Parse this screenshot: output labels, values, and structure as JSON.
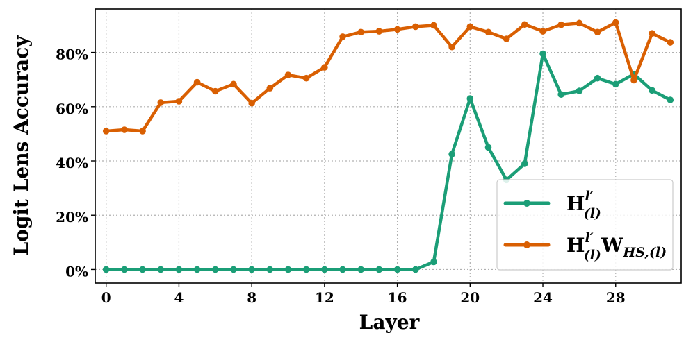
{
  "chart_data": {
    "type": "line",
    "xlabel": "Layer",
    "ylabel": "Logit Lens Accuracy",
    "xlim": [
      -0.6,
      31.6
    ],
    "ylim": [
      -0.05,
      0.96
    ],
    "x_ticks": [
      0,
      4,
      8,
      12,
      16,
      20,
      24,
      28
    ],
    "x_tick_labels": [
      "0",
      "4",
      "8",
      "12",
      "16",
      "20",
      "24",
      "28"
    ],
    "y_ticks": [
      0,
      0.2,
      0.4,
      0.6,
      0.8
    ],
    "y_tick_labels": [
      "0%",
      "20%",
      "40%",
      "60%",
      "80%"
    ],
    "grid": true,
    "legend_position": "lower-right",
    "x": [
      0,
      1,
      2,
      3,
      4,
      5,
      6,
      7,
      8,
      9,
      10,
      11,
      12,
      13,
      14,
      15,
      16,
      17,
      18,
      19,
      20,
      21,
      22,
      23,
      24,
      25,
      26,
      27,
      28,
      29,
      30,
      31
    ],
    "series": [
      {
        "name": "H(l)^l′",
        "legend_main": "H",
        "legend_sub": "(l)",
        "legend_sup": "l′",
        "color": "#1b9e77",
        "values": [
          0,
          0,
          0,
          0,
          0,
          0,
          0,
          0,
          0,
          0,
          0,
          0,
          0,
          0,
          0,
          0,
          0,
          0,
          0.028,
          0.425,
          0.63,
          0.45,
          0.33,
          0.39,
          0.795,
          0.645,
          0.658,
          0.705,
          0.683,
          0.72,
          0.66,
          0.625
        ]
      },
      {
        "name": "H(l)^l′ W_HS,(l)",
        "legend_main": "H",
        "legend_sub": "(l)",
        "legend_sup": "l′",
        "legend_main2": "W",
        "legend_sub2": "HS,(l)",
        "color": "#d95f02",
        "values": [
          0.51,
          0.515,
          0.51,
          0.615,
          0.62,
          0.69,
          0.657,
          0.683,
          0.613,
          0.668,
          0.717,
          0.705,
          0.745,
          0.858,
          0.875,
          0.878,
          0.885,
          0.895,
          0.9,
          0.82,
          0.895,
          0.875,
          0.85,
          0.903,
          0.878,
          0.902,
          0.908,
          0.875,
          0.91,
          0.698,
          0.87,
          0.837
        ]
      }
    ]
  }
}
